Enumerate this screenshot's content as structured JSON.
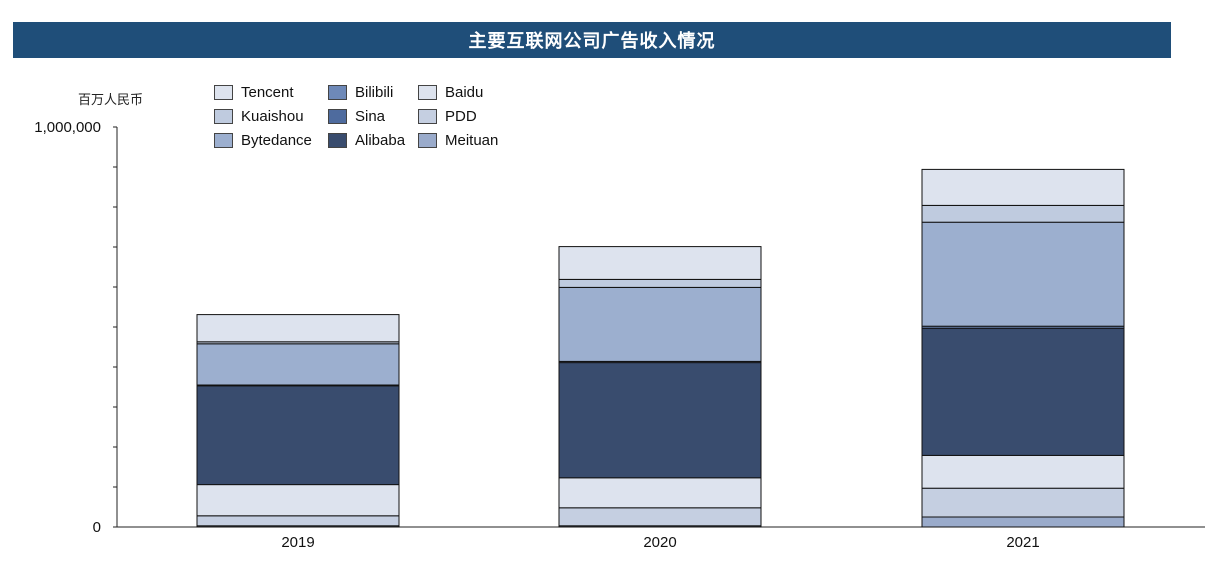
{
  "header": {
    "title": "主要互联网公司广告收入情况"
  },
  "chart_data": {
    "type": "bar",
    "stacked": true,
    "title": "主要互联网公司广告收入情况",
    "unit": "百万人民币",
    "categories": [
      "2019",
      "2020",
      "2021"
    ],
    "ylim": [
      0,
      1000000
    ],
    "ytick_labels": [
      "0",
      "1,000,000"
    ],
    "legend_placement": "top-left",
    "series": [
      {
        "name": "Meituan",
        "color": "#9aabcb",
        "values": [
          3000,
          3000,
          25000
        ]
      },
      {
        "name": "PDD",
        "color": "#c5cfe1",
        "values": [
          25000,
          45000,
          72000
        ]
      },
      {
        "name": "Baidu",
        "color": "#dde3ee",
        "values": [
          78000,
          75000,
          82000
        ]
      },
      {
        "name": "Alibaba",
        "color": "#394c6e",
        "values": [
          247000,
          288000,
          318000
        ]
      },
      {
        "name": "Sina",
        "color": "#4e6b9e",
        "values": [
          0,
          0,
          0
        ]
      },
      {
        "name": "Bilibili",
        "color": "#6e89b8",
        "values": [
          2000,
          3000,
          5000
        ]
      },
      {
        "name": "Bytedance",
        "color": "#9cafcf",
        "values": [
          103000,
          185000,
          260000
        ]
      },
      {
        "name": "Kuaishou",
        "color": "#bfcbdf",
        "values": [
          5000,
          20000,
          42000
        ]
      },
      {
        "name": "Tencent",
        "color": "#dde3ee",
        "values": [
          68000,
          82000,
          90000
        ]
      }
    ],
    "legend_order": [
      "Tencent",
      "Bilibili",
      "Baidu",
      "Kuaishou",
      "Sina",
      "PDD",
      "Bytedance",
      "Alibaba",
      "Meituan"
    ]
  }
}
